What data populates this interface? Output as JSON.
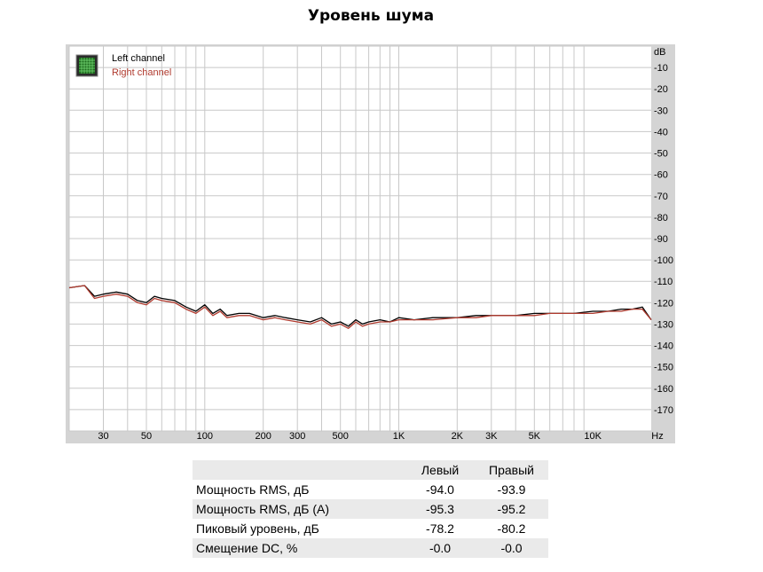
{
  "title": "Уровень шума",
  "chart_data": {
    "type": "line",
    "x_scale": "log",
    "xlim": [
      20,
      20000
    ],
    "ylim": [
      -180,
      0
    ],
    "x_ticks": [
      30,
      50,
      100,
      200,
      300,
      500,
      1000,
      2000,
      3000,
      5000,
      10000
    ],
    "x_tick_labels": [
      "30",
      "50",
      "100",
      "200",
      "300",
      "500",
      "1K",
      "2K",
      "3K",
      "5K",
      "10K"
    ],
    "x_unit": "Hz",
    "y_ticks": [
      -10,
      -20,
      -30,
      -40,
      -50,
      -60,
      -70,
      -80,
      -90,
      -100,
      -110,
      -120,
      -130,
      -140,
      -150,
      -160,
      -170
    ],
    "y_tick_labels": [
      "-10",
      "-20",
      "-30",
      "-40",
      "-50",
      "-60",
      "-70",
      "-80",
      "-90",
      "-100",
      "-110",
      "-120",
      "-130",
      "-140",
      "-150",
      "-160",
      "-170"
    ],
    "y_unit": "dB",
    "grid": true,
    "legend_position": "top-left",
    "series": [
      {
        "name": "Left channel",
        "color": "#000000",
        "x": [
          20,
          24,
          27,
          30,
          35,
          40,
          45,
          50,
          55,
          60,
          70,
          80,
          90,
          100,
          110,
          120,
          130,
          150,
          170,
          200,
          230,
          260,
          300,
          350,
          400,
          450,
          500,
          550,
          600,
          650,
          700,
          800,
          900,
          1000,
          1200,
          1500,
          2000,
          2500,
          3000,
          4000,
          5000,
          6000,
          7000,
          8000,
          10000,
          12000,
          14000,
          16000,
          18000,
          20000
        ],
        "y": [
          -113,
          -112,
          -117,
          -116,
          -115,
          -116,
          -119,
          -120,
          -117,
          -118,
          -119,
          -122,
          -124,
          -121,
          -125,
          -123,
          -126,
          -125,
          -125,
          -127,
          -126,
          -127,
          -128,
          -129,
          -127,
          -130,
          -129,
          -131,
          -128,
          -130,
          -129,
          -128,
          -129,
          -127,
          -128,
          -127,
          -127,
          -126,
          -126,
          -126,
          -125,
          -125,
          -125,
          -125,
          -124,
          -124,
          -123,
          -123,
          -122,
          -128
        ]
      },
      {
        "name": "Right channel",
        "color": "#b03a2e",
        "x": [
          20,
          24,
          27,
          30,
          35,
          40,
          45,
          50,
          55,
          60,
          70,
          80,
          90,
          100,
          110,
          120,
          130,
          150,
          170,
          200,
          230,
          260,
          300,
          350,
          400,
          450,
          500,
          550,
          600,
          650,
          700,
          800,
          900,
          1000,
          1200,
          1500,
          2000,
          2500,
          3000,
          4000,
          5000,
          6000,
          7000,
          8000,
          10000,
          12000,
          14000,
          16000,
          18000,
          20000
        ],
        "y": [
          -113,
          -112,
          -118,
          -117,
          -116,
          -117,
          -120,
          -121,
          -118,
          -119,
          -120,
          -123,
          -125,
          -122,
          -126,
          -124,
          -127,
          -126,
          -126,
          -128,
          -127,
          -128,
          -129,
          -130,
          -128,
          -131,
          -130,
          -132,
          -129,
          -131,
          -130,
          -129,
          -129,
          -128,
          -128,
          -128,
          -127,
          -127,
          -126,
          -126,
          -126,
          -125,
          -125,
          -125,
          -125,
          -124,
          -124,
          -123,
          -123,
          -128
        ]
      }
    ]
  },
  "table": {
    "headers": [
      "",
      "Левый",
      "Правый"
    ],
    "rows": [
      {
        "label": "Мощность RMS, дБ",
        "left": "-94.0",
        "right": "-93.9"
      },
      {
        "label": "Мощность RMS, дБ (A)",
        "left": "-95.3",
        "right": "-95.2"
      },
      {
        "label": "Пиковый уровень, дБ",
        "left": "-78.2",
        "right": "-80.2"
      },
      {
        "label": "Смещение DC, %",
        "left": "-0.0",
        "right": "-0.0"
      }
    ]
  }
}
